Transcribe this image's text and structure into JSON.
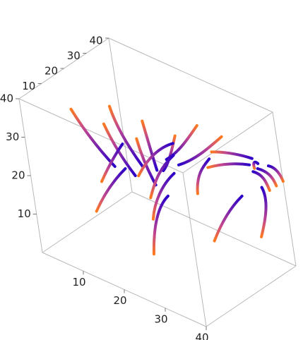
{
  "chart_data": {
    "type": "line",
    "subtype": "3d-stream-lines",
    "title": "",
    "xlabel": "",
    "ylabel": "",
    "zlabel": "",
    "xlim": [
      0,
      40
    ],
    "ylim": [
      0,
      40
    ],
    "zlim": [
      0,
      40
    ],
    "x_ticks": [
      "10",
      "20",
      "30",
      "40"
    ],
    "y_ticks": [
      "10",
      "20",
      "30",
      "40"
    ],
    "z_ticks": [
      "10",
      "20",
      "30",
      "40"
    ],
    "grid": false,
    "legend": "none",
    "color_gradient": [
      "#2a00c8",
      "#7020b0",
      "#c04690",
      "#ff7a1e"
    ],
    "series": [
      {
        "points": [
          [
            8,
            8,
            38
          ],
          [
            10,
            9,
            33
          ],
          [
            12,
            11,
            28
          ],
          [
            14,
            13,
            24
          ]
        ]
      },
      {
        "points": [
          [
            16,
            8,
            38
          ],
          [
            17,
            9,
            33
          ],
          [
            18,
            11,
            28
          ],
          [
            19,
            13,
            24
          ]
        ]
      },
      {
        "points": [
          [
            24,
            8,
            38
          ],
          [
            24,
            9,
            33
          ],
          [
            24,
            11,
            28
          ],
          [
            24,
            13,
            24
          ]
        ]
      },
      {
        "points": [
          [
            13,
            16,
            38
          ],
          [
            14,
            16,
            33
          ],
          [
            16,
            17,
            28
          ],
          [
            18,
            18,
            24
          ]
        ]
      },
      {
        "points": [
          [
            21,
            16,
            38
          ],
          [
            21,
            17,
            33
          ],
          [
            21,
            18,
            28
          ],
          [
            21,
            19,
            24
          ]
        ]
      },
      {
        "points": [
          [
            29,
            16,
            38
          ],
          [
            27,
            17,
            33
          ],
          [
            25,
            18,
            28
          ],
          [
            22,
            20,
            24
          ]
        ]
      },
      {
        "points": [
          [
            30,
            24,
            38
          ],
          [
            27,
            24,
            33
          ],
          [
            24,
            24,
            28
          ],
          [
            20,
            25,
            24
          ]
        ]
      },
      {
        "points": [
          [
            36,
            24,
            38
          ],
          [
            32,
            24,
            33
          ],
          [
            28,
            24,
            28
          ],
          [
            23,
            25,
            24
          ]
        ]
      },
      {
        "points": [
          [
            24,
            8,
            8
          ],
          [
            25,
            8,
            16
          ],
          [
            27,
            8,
            22
          ],
          [
            30,
            8,
            26
          ]
        ]
      },
      {
        "points": [
          [
            20,
            16,
            12
          ],
          [
            21,
            16,
            17
          ],
          [
            23,
            17,
            22
          ],
          [
            26,
            18,
            26
          ]
        ]
      },
      {
        "points": [
          [
            15,
            24,
            12
          ],
          [
            17,
            24,
            18
          ],
          [
            19,
            24,
            22
          ],
          [
            22,
            25,
            26
          ]
        ]
      },
      {
        "points": [
          [
            30,
            24,
            8
          ],
          [
            33,
            24,
            15
          ],
          [
            36,
            24,
            20
          ],
          [
            39,
            24,
            24
          ]
        ]
      },
      {
        "points": [
          [
            21,
            34,
            12
          ],
          [
            22,
            33,
            18
          ],
          [
            25,
            32,
            22
          ],
          [
            28,
            30,
            26
          ]
        ]
      },
      {
        "points": [
          [
            36,
            34,
            8
          ],
          [
            38,
            34,
            14
          ],
          [
            40,
            33,
            20
          ],
          [
            40,
            31,
            24
          ]
        ]
      },
      {
        "points": [
          [
            40,
            34,
            22
          ],
          [
            40,
            33,
            25
          ],
          [
            40,
            32,
            27
          ],
          [
            39,
            30,
            28
          ]
        ]
      },
      {
        "points": [
          [
            40,
            37,
            22
          ],
          [
            40,
            36,
            25
          ],
          [
            40,
            34,
            27
          ],
          [
            39,
            32,
            28
          ]
        ]
      },
      {
        "points": [
          [
            40,
            40,
            22
          ],
          [
            40,
            39,
            25
          ],
          [
            40,
            37,
            27
          ],
          [
            40,
            35,
            28
          ]
        ]
      },
      {
        "points": [
          [
            33,
            40,
            22
          ],
          [
            34,
            38,
            25
          ],
          [
            36,
            36,
            27
          ],
          [
            38,
            34,
            28
          ]
        ]
      },
      {
        "points": [
          [
            26,
            32,
            22
          ],
          [
            30,
            32,
            25
          ],
          [
            34,
            32,
            27
          ],
          [
            37,
            32,
            28
          ]
        ]
      },
      {
        "points": [
          [
            25,
            36,
            24
          ],
          [
            29,
            36,
            26
          ],
          [
            33,
            36,
            27
          ],
          [
            36,
            35,
            28
          ]
        ]
      },
      {
        "points": [
          [
            14,
            22,
            18
          ],
          [
            17,
            22,
            24
          ],
          [
            20,
            23,
            28
          ],
          [
            23,
            24,
            30
          ]
        ]
      },
      {
        "points": [
          [
            8,
            16,
            16
          ],
          [
            10,
            17,
            21
          ],
          [
            12,
            18,
            25
          ],
          [
            13,
            19,
            27
          ]
        ]
      },
      {
        "points": [
          [
            10,
            9,
            12
          ],
          [
            12,
            10,
            17
          ],
          [
            14,
            12,
            21
          ],
          [
            16,
            14,
            24
          ]
        ]
      }
    ]
  }
}
